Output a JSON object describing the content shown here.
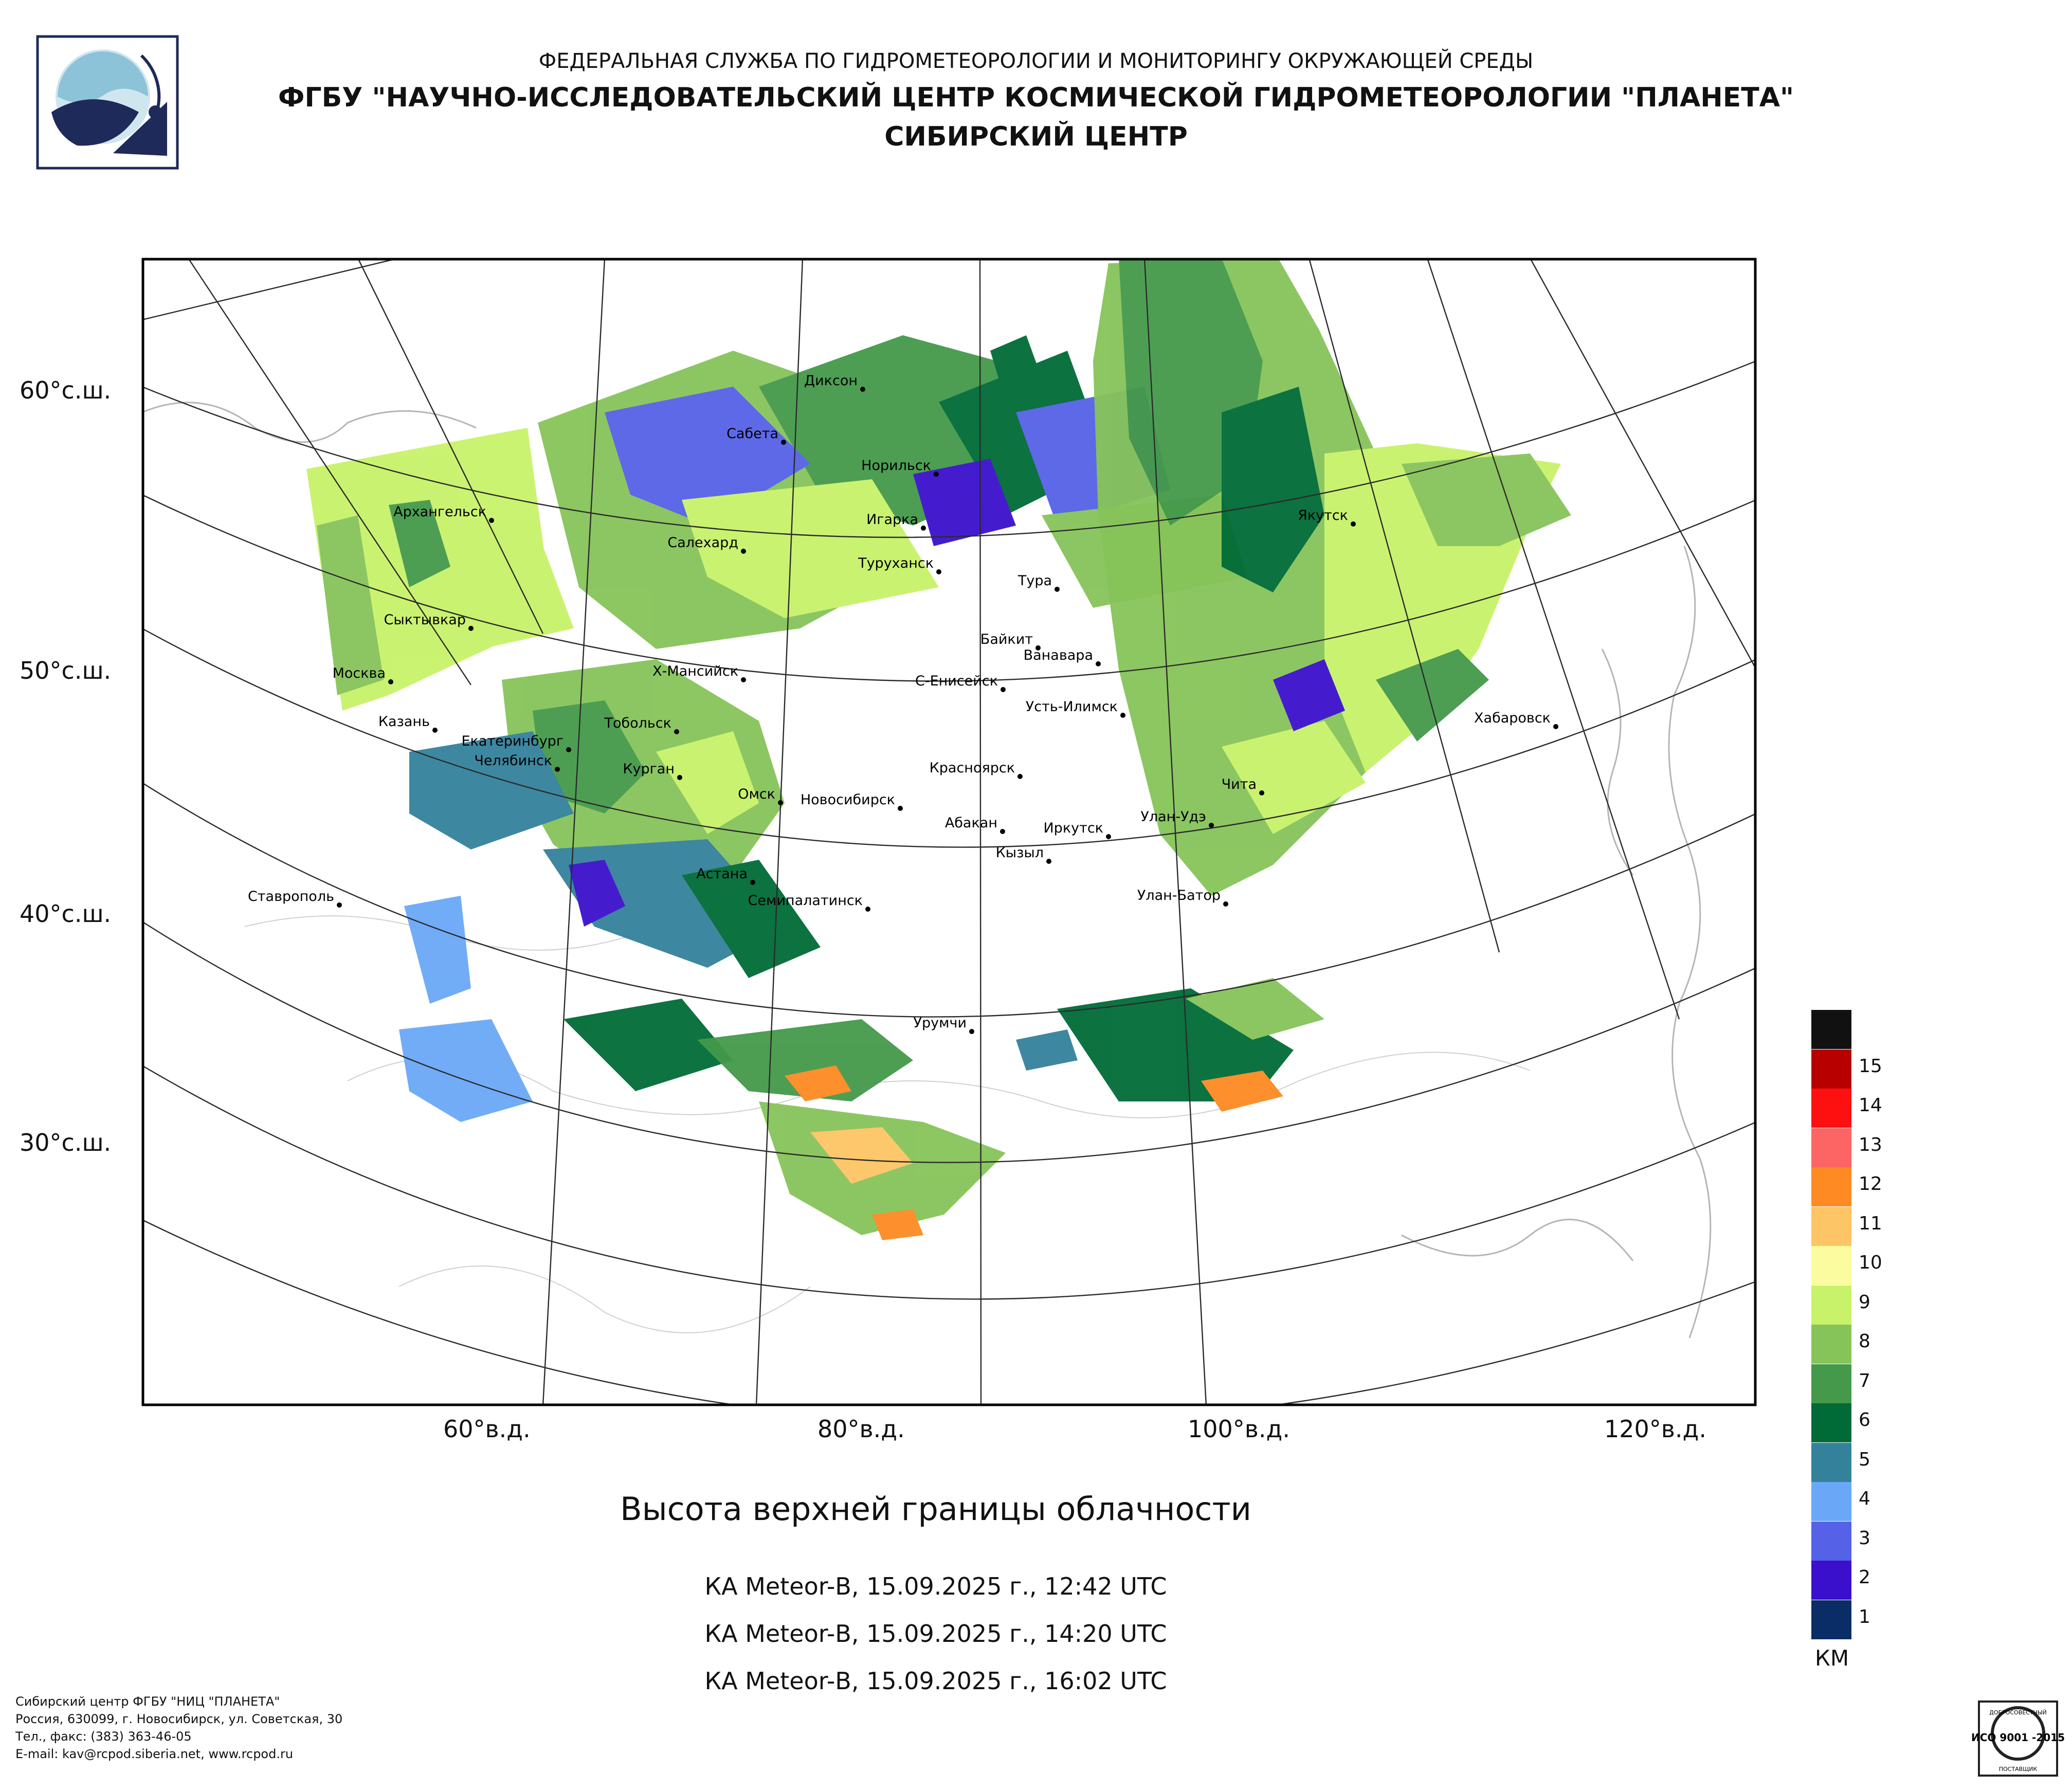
{
  "header": {
    "agency": "ФЕДЕРАЛЬНАЯ СЛУЖБА ПО ГИДРОМЕТЕОРОЛОГИИ И МОНИТОРИНГУ ОКРУЖАЮЩЕЙ СРЕДЫ",
    "center": "ФГБУ \"НАУЧНО-ИССЛЕДОВАТЕЛЬСКИЙ ЦЕНТР КОСМИЧЕСКОЙ ГИДРОМЕТЕОРОЛОГИИ \"ПЛАНЕТА\"",
    "branch": "СИБИРСКИЙ ЦЕНТР"
  },
  "map": {
    "lat_labels": [
      "60°с.ш.",
      "50°с.ш.",
      "40°с.ш.",
      "30°с.ш."
    ],
    "lon_labels": [
      "60°в.д.",
      "80°в.д.",
      "100°в.д.",
      "120°в.д."
    ],
    "cities": [
      "Диксон",
      "Сабета",
      "Норильск",
      "Игарка",
      "Архангельск",
      "Салехард",
      "Туруханск",
      "Тура",
      "Якутск",
      "Сыктывкар",
      "Байкит",
      "Ванавара",
      "Москва",
      "Х-Мансийск",
      "С-Енисейск",
      "Усть-Илимск",
      "Хабаровск",
      "Казань",
      "Тобольск",
      "Екатеринбург",
      "Челябинск",
      "Курган",
      "Омск",
      "Новосибирск",
      "Красноярск",
      "Абакан",
      "Чита",
      "Улан-Удэ",
      "Иркутск",
      "Кызыл",
      "Ставрополь",
      "Астана",
      "Семипалатинск",
      "Улан-Батор",
      "Урумчи"
    ]
  },
  "legend": {
    "unit": "КМ",
    "levels": [
      "1",
      "2",
      "3",
      "4",
      "5",
      "6",
      "7",
      "8",
      "9",
      "10",
      "11",
      "12",
      "13",
      "14",
      "15"
    ],
    "colors": [
      "#0a2d66",
      "#3a10cc",
      "#5561e6",
      "#6aa8f7",
      "#34819b",
      "#006b36",
      "#44994a",
      "#86c45a",
      "#c8f26a",
      "#fbfc9f",
      "#fdc565",
      "#fd8a22",
      "#fd6464",
      "#fd1010",
      "#b80000",
      "#111111"
    ]
  },
  "caption": {
    "title": "Высота верхней границы облачности",
    "passes": [
      "КА Meteor-В, 15.09.2025 г., 12:42 UTC",
      "КА Meteor-В, 15.09.2025 г., 14:20 UTC",
      "КА Meteor-В, 15.09.2025 г., 16:02 UTC"
    ]
  },
  "footer": {
    "line1": "Сибирский центр ФГБУ \"НИЦ \"ПЛАНЕТА\"",
    "line2": "Россия, 630099, г. Новосибирск, ул. Советская, 30",
    "line3": "Тел., факс: (383) 363-46-05",
    "line4": "E-mail: kav@rcpod.siberia.net, www.rcpod.ru",
    "iso_top": "ДОБРОСОВЕСТНЫЙ",
    "iso_main": "ИСО 9001 -2015",
    "iso_bottom": "ПОСТАВЩИК"
  }
}
